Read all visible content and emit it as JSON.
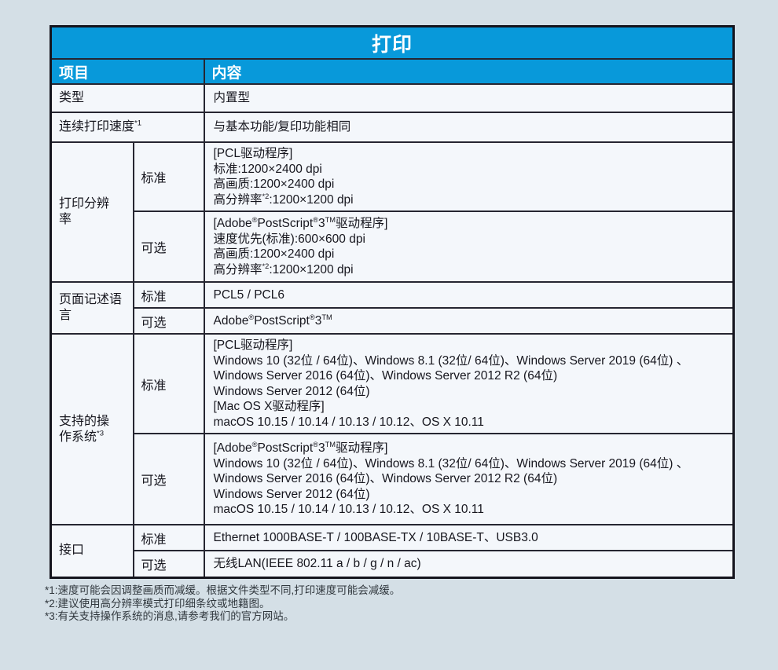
{
  "colors": {
    "page_bg": "#D4DFE6",
    "header_blue": "#0899DA",
    "border_outer": "#14141D",
    "border_inner": "#262631",
    "cell_bg": "#F4F7FB",
    "text": "#16161E",
    "footnote_text": "#30373D"
  },
  "table": {
    "title": "打印",
    "header": {
      "item": "项目",
      "content": "内容"
    },
    "tier_labels": {
      "standard": "标准",
      "optional": "可选"
    },
    "rows": {
      "type": {
        "label": "类型",
        "content": "内置型"
      },
      "speed": {
        "label_html": "连续打印速度<sup>*1</sup>",
        "content": "与基本功能/复印功能相同"
      },
      "resolution": {
        "label_html": "打印分辨<br>率",
        "standard_label": "标准",
        "standard_html": "[PCL驱动程序]<br>标准:1200×2400 dpi<br>高画质:1200×2400 dpi<br>高分辨率<sup>*2</sup>:1200×1200 dpi",
        "optional_label": "可选",
        "optional_html": "[Adobe<sup>®</sup>PostScript<sup>®</sup>3<sup>TM</sup>驱动程序]<br>速度优先(标准):600×600 dpi<br>高画质:1200×2400 dpi<br>高分辨率<sup>*2</sup>:1200×1200 dpi"
      },
      "pdl": {
        "label_html": "页面记述语<br>言",
        "standard_label": "标准",
        "standard_html": "PCL5 / PCL6",
        "optional_label": "可选",
        "optional_html": "Adobe<sup>®</sup>PostScript<sup>®</sup>3<sup>TM</sup>"
      },
      "os": {
        "label_html": "支持的操<br>作系统<sup>*3</sup>",
        "standard_label": "标准",
        "standard_html": "[PCL驱动程序]<br>Windows 10 (32位 / 64位)、Windows 8.1 (32位/ 64位)、Windows Server 2019 (64位) 、<br>Windows Server 2016 (64位)、Windows Server 2012 R2 (64位)<br>Windows Server 2012 (64位)<br>[Mac OS X驱动程序]<br>macOS 10.15 / 10.14 / 10.13 / 10.12、OS X 10.11",
        "optional_label": "可选",
        "optional_html": "[Adobe<sup>®</sup>PostScript<sup>®</sup>3<sup>TM</sup>驱动程序]<br>Windows 10 (32位 / 64位)、Windows 8.1 (32位/ 64位)、Windows Server 2019 (64位) 、<br>Windows Server 2016 (64位)、Windows Server 2012 R2 (64位)<br>Windows Server 2012 (64位)<br>macOS 10.15 / 10.14 / 10.13 / 10.12、OS X 10.11"
      },
      "interface": {
        "label_html": "接口",
        "standard_label": "标准",
        "standard_html": "Ethernet 1000BASE-T / 100BASE-TX / 10BASE-T、USB3.0",
        "optional_label": "可选",
        "optional_html": "无线LAN(IEEE 802.11 a / b / g / n / ac)"
      }
    }
  },
  "footnotes": [
    "*1:速度可能会因调整画质而减缓。根据文件类型不同,打印速度可能会减缓。",
    "*2:建议使用高分辨率模式打印细条纹或地籍图。",
    "*3:有关支持操作系统的消息,请参考我们的官方网站。"
  ]
}
